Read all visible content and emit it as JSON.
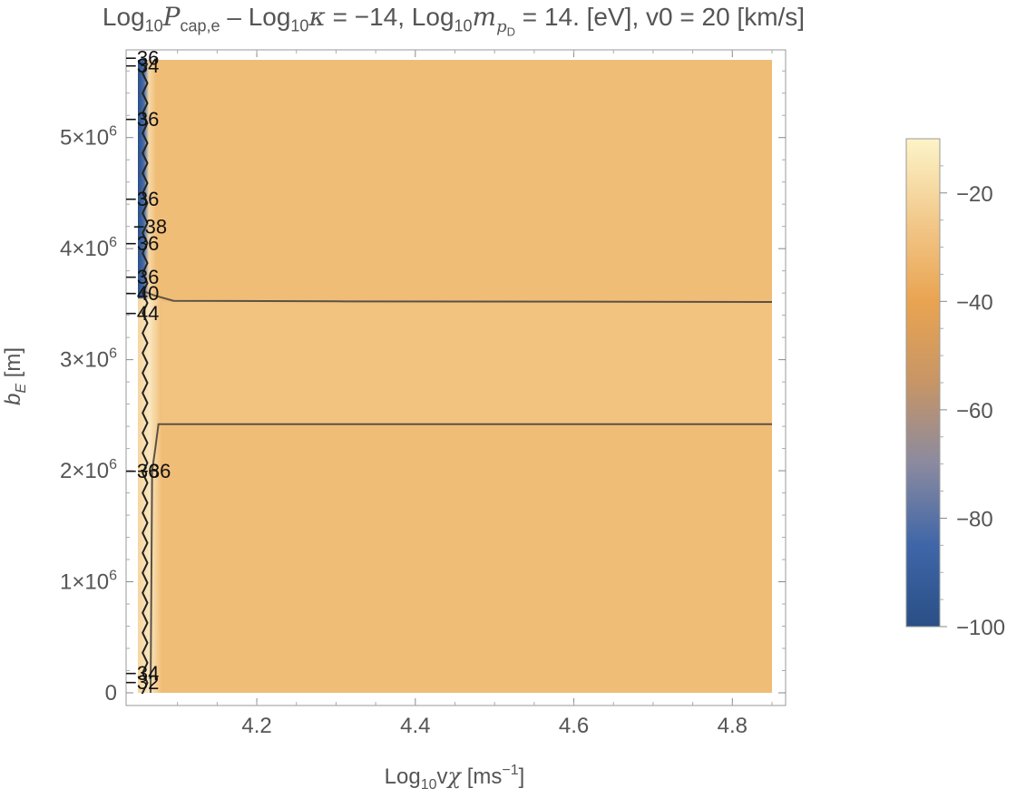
{
  "chart_data": {
    "type": "heatmap",
    "title": "Log10Pcap,e – Log10κ = −14, Log10mpD = 14. [eV], v0 = 20 [km/s]",
    "title_parts": {
      "p1": "Log",
      "p1sub": "10",
      "p1var": "P",
      "p1varsub": "cap,e",
      "p2": " – Log",
      "p2sub": "10",
      "p2var": "κ",
      "p2rest": " = −14, Log",
      "p3sub": "10",
      "p3var": "m",
      "p3varsub": "p",
      "p3varsubsub": "D",
      "p4": " = 14. [eV], v0 = 20 [km/s]"
    },
    "xlabel": "Log10vχ [ms⁻¹]",
    "xlabel_parts": {
      "a": "Log",
      "asub": "10",
      "b": "v",
      "c": "χ",
      "d": " [ms",
      "dsup": "−1",
      "e": "]"
    },
    "ylabel": "bE [m]",
    "ylabel_parts": {
      "a": "b",
      "asub": "E",
      "b": " [m]"
    },
    "x_range": [
      4.05,
      4.85
    ],
    "y_range": [
      0,
      5700000
    ],
    "x_ticks": [
      {
        "value": 4.2,
        "label": "4.2"
      },
      {
        "value": 4.4,
        "label": "4.4"
      },
      {
        "value": 4.6,
        "label": "4.6"
      },
      {
        "value": 4.8,
        "label": "4.8"
      }
    ],
    "y_ticks": [
      {
        "value": 0,
        "label": "0",
        "mant": "",
        "exp": ""
      },
      {
        "value": 1000000,
        "label": "1×10^6",
        "mant": "1×10",
        "exp": "6"
      },
      {
        "value": 2000000,
        "label": "2×10^6",
        "mant": "2×10",
        "exp": "6"
      },
      {
        "value": 3000000,
        "label": "3×10^6",
        "mant": "3×10",
        "exp": "6"
      },
      {
        "value": 4000000,
        "label": "4×10^6",
        "mant": "4×10",
        "exp": "6"
      },
      {
        "value": 5000000,
        "label": "5×10^6",
        "mant": "5×10",
        "exp": "6"
      }
    ],
    "colorbar": {
      "range": [
        -100,
        -10
      ],
      "ticks": [
        {
          "value": -20,
          "label": "−20"
        },
        {
          "value": -40,
          "label": "−40"
        },
        {
          "value": -60,
          "label": "−60"
        },
        {
          "value": -80,
          "label": "−80"
        },
        {
          "value": -100,
          "label": "−100"
        }
      ],
      "colors": [
        "#2a4f86",
        "#3f66a8",
        "#8a8aa0",
        "#c79566",
        "#e9a451",
        "#f2c98c",
        "#fdf4c8"
      ]
    },
    "fill_value": -37,
    "contours": [
      {
        "level": "upper",
        "points": [
          [
            4.056,
            3620000.0
          ],
          [
            4.07,
            3580000.0
          ],
          [
            4.08,
            3560000.0
          ],
          [
            4.095,
            3530000.0
          ],
          [
            4.3,
            3525000.0
          ],
          [
            4.85,
            3520000.0
          ]
        ]
      },
      {
        "level": "lower",
        "points": [
          [
            4.066,
            0
          ],
          [
            4.068,
            2000000.0
          ],
          [
            4.072,
            2200000.0
          ],
          [
            4.076,
            2420000.0
          ],
          [
            4.2,
            2420000.0
          ],
          [
            4.85,
            2420000.0
          ]
        ]
      }
    ],
    "contour_labels": [
      {
        "x": 4.05,
        "y": 5720000.0,
        "text": "−36"
      },
      {
        "x": 4.05,
        "y": 5650000.0,
        "text": "−34"
      },
      {
        "x": 4.05,
        "y": 5170000.0,
        "text": "−36"
      },
      {
        "x": 4.05,
        "y": 4450000.0,
        "text": "−36"
      },
      {
        "x": 4.06,
        "y": 4200000.0,
        "text": "−38"
      },
      {
        "x": 4.05,
        "y": 4050000.0,
        "text": "−36"
      },
      {
        "x": 4.05,
        "y": 3750000.0,
        "text": "−36"
      },
      {
        "x": 4.05,
        "y": 3600000.0,
        "text": "−40"
      },
      {
        "x": 4.05,
        "y": 3420000.0,
        "text": "−44"
      },
      {
        "x": 4.05,
        "y": 2000000.0,
        "text": "−36"
      },
      {
        "x": 4.065,
        "y": 2000000.0,
        "text": "−36"
      },
      {
        "x": 4.05,
        "y": 180000.0,
        "text": "−34"
      },
      {
        "x": 4.05,
        "y": 100000.0,
        "text": "−32"
      }
    ]
  }
}
